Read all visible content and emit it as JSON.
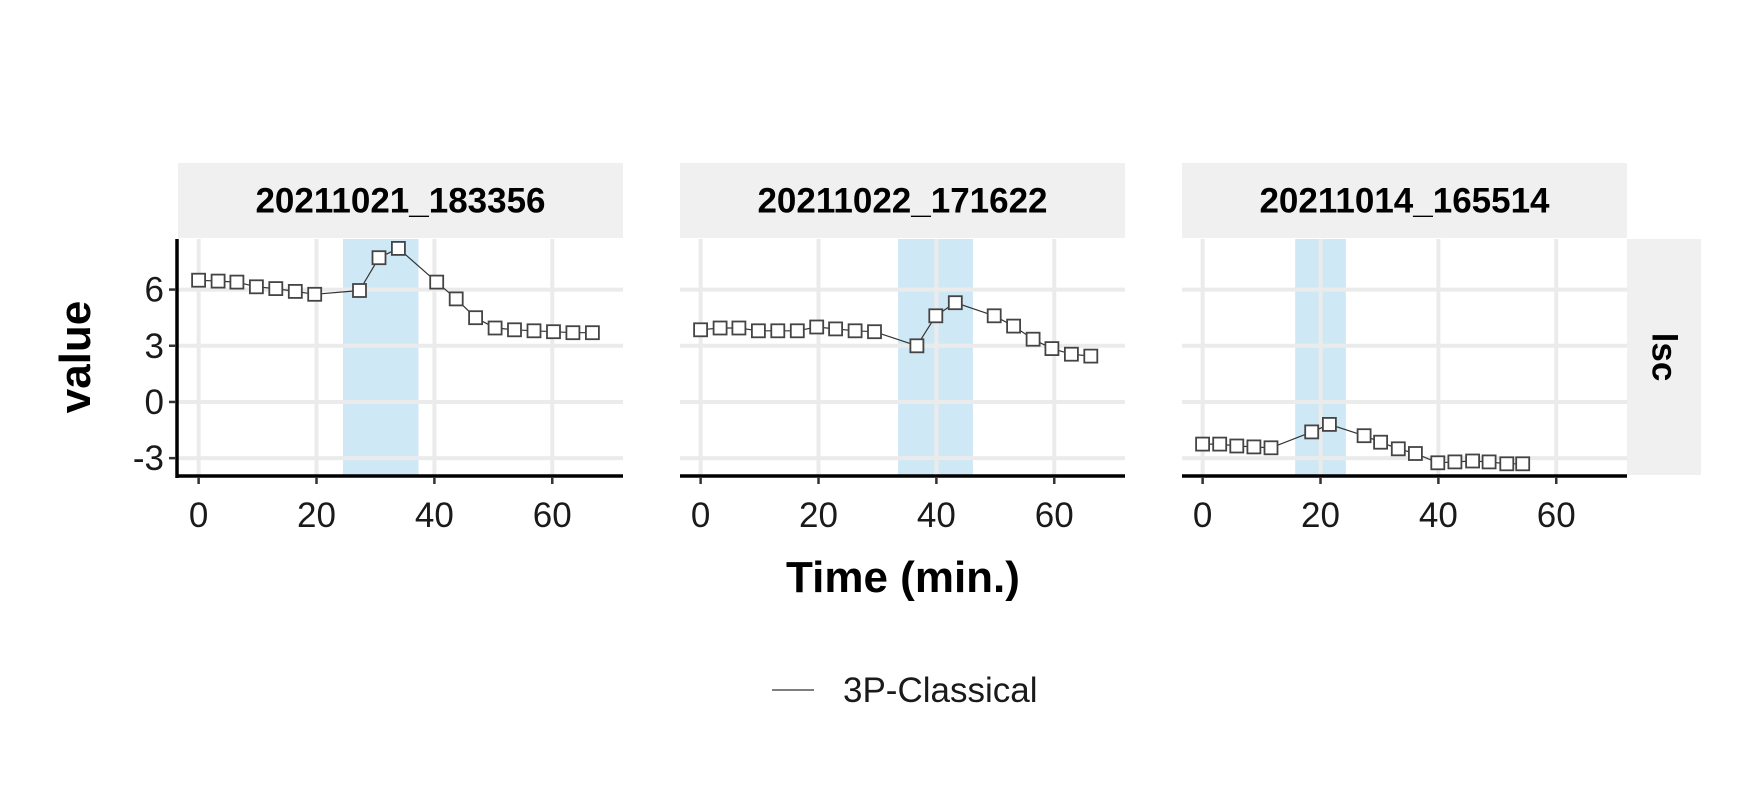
{
  "chart_data": {
    "type": "line",
    "xlabel": "Time (min.)",
    "ylabel": "value",
    "row_strip": "lsc",
    "xlim": [
      -3.5,
      72
    ],
    "ylim": [
      -3.9,
      8.7
    ],
    "x_ticks": [
      0,
      20,
      40,
      60
    ],
    "y_ticks": [
      -3,
      0,
      3,
      6
    ],
    "y_tick_labels": [
      "-3",
      "0",
      "3",
      "6"
    ],
    "grid": true,
    "legend": {
      "position": "bottom",
      "entries": [
        {
          "label": "3P-Classical",
          "color": "#333333"
        }
      ]
    },
    "colors": {
      "highlight": "#cfe8f6",
      "strip": "#f0f0f0",
      "marker_stroke": "#444444",
      "line": "#333333",
      "grid": "#ebebeb"
    },
    "panels": [
      {
        "strip": "20211021_183356",
        "highlight": [
          24.5,
          37.3
        ],
        "series": [
          {
            "name": "3P-Classical",
            "x": [
              0,
              3.3,
              6.5,
              9.8,
              13.1,
              16.4,
              19.7,
              27.3,
              30.6,
              33.9,
              40.4,
              43.7,
              47.0,
              50.3,
              53.6,
              56.9,
              60.2,
              63.5,
              66.8
            ],
            "y": [
              6.5,
              6.45,
              6.4,
              6.15,
              6.05,
              5.9,
              5.75,
              5.95,
              7.7,
              8.2,
              6.4,
              5.5,
              4.5,
              3.95,
              3.85,
              3.8,
              3.75,
              3.7,
              3.7
            ]
          }
        ]
      },
      {
        "strip": "20211022_171622",
        "highlight": [
          33.5,
          46.2
        ],
        "series": [
          {
            "name": "3P-Classical",
            "x": [
              0,
              3.3,
              6.5,
              9.8,
              13.1,
              16.4,
              19.7,
              22.9,
              26.2,
              29.5,
              36.7,
              39.9,
              43.2,
              49.8,
              53.1,
              56.4,
              59.6,
              62.9,
              66.2
            ],
            "y": [
              3.85,
              3.95,
              3.95,
              3.8,
              3.8,
              3.8,
              4.0,
              3.9,
              3.8,
              3.75,
              3.0,
              4.6,
              5.3,
              4.6,
              4.05,
              3.35,
              2.85,
              2.55,
              2.45
            ]
          }
        ]
      },
      {
        "strip": "20211014_165514",
        "highlight": [
          15.7,
          24.3
        ],
        "series": [
          {
            "name": "3P-Classical",
            "x": [
              0,
              2.9,
              5.8,
              8.7,
              11.6,
              18.5,
              21.5,
              27.4,
              30.2,
              33.2,
              36.1,
              39.9,
              42.8,
              45.8,
              48.6,
              51.6,
              54.3
            ],
            "y": [
              -2.25,
              -2.25,
              -2.35,
              -2.4,
              -2.45,
              -1.6,
              -1.2,
              -1.8,
              -2.15,
              -2.5,
              -2.75,
              -3.25,
              -3.2,
              -3.15,
              -3.2,
              -3.3,
              -3.3
            ]
          }
        ]
      }
    ]
  }
}
